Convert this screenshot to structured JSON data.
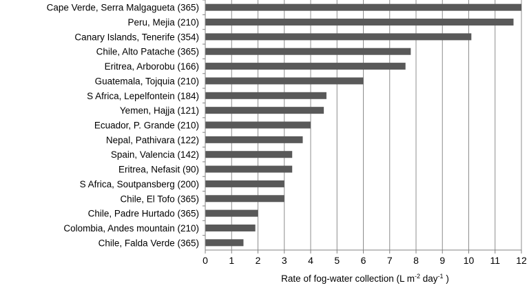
{
  "chart_data": {
    "type": "bar",
    "orientation": "horizontal",
    "categories": [
      "Cape Verde, Serra Malgagueta (365)",
      "Peru, Mejia (210)",
      "Canary Islands, Tenerife (354)",
      "Chile, Alto Patache (365)",
      "Eritrea, Arborobu (166)",
      "Guatemala, Tojquia (210)",
      "S Africa, Lepelfontein (184)",
      "Yemen, Hajja (121)",
      "Ecuador, P. Grande (210)",
      "Nepal, Pathivara (122)",
      "Spain, Valencia (142)",
      "Eritrea, Nefasit (90)",
      "S Africa, Soutpansberg (200)",
      "Chile, El Tofo (365)",
      "Chile, Padre Hurtado (365)",
      "Colombia, Andes mountain (210)",
      "Chile, Falda Verde (365)"
    ],
    "values": [
      12,
      11.7,
      10.1,
      7.8,
      7.6,
      6,
      4.6,
      4.5,
      4,
      3.7,
      3.3,
      3.3,
      3,
      3,
      2,
      1.9,
      1.45
    ],
    "xlim": [
      0,
      12
    ],
    "xticks": [
      "0",
      "1",
      "2",
      "3",
      "4",
      "5",
      "6",
      "7",
      "8",
      "9",
      "10",
      "11",
      "12"
    ],
    "xlabel_main": "Rate of fog-water collection (L m",
    "xlabel_sup1": "-2",
    "xlabel_mid": " day",
    "xlabel_sup2": "-1",
    "xlabel_end": " )",
    "grid": "vertical",
    "bar_color": "#595959",
    "grid_color": "#8c8c8c",
    "axis_color": "#808080"
  }
}
